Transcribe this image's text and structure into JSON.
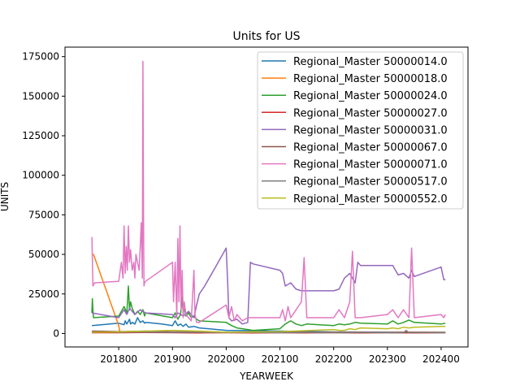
{
  "chart_data": {
    "type": "line",
    "title": "Units for US",
    "xlabel": "YEARWEEK",
    "ylabel": "UNITS",
    "xlim": [
      201700,
      202450
    ],
    "ylim": [
      -8500,
      181000
    ],
    "xticks": [
      201800,
      201900,
      202000,
      202100,
      202200,
      202300,
      202400
    ],
    "yticks": [
      0,
      25000,
      50000,
      75000,
      100000,
      125000,
      150000,
      175000
    ],
    "legend_position": "top-right",
    "series": [
      {
        "name": "Regional_Master 50000014.0",
        "color": "#1f77b4",
        "x": [
          201750,
          201800,
          201810,
          201812,
          201815,
          201820,
          201822,
          201825,
          201830,
          201835,
          201840,
          201845,
          201848,
          201850,
          201880,
          201900,
          201905,
          201910,
          201915,
          201920,
          201925,
          201930,
          201940,
          201950,
          202000,
          202100,
          202200,
          202300,
          202408
        ],
        "y": [
          5000,
          6500,
          5500,
          8000,
          6000,
          9000,
          6000,
          7000,
          6000,
          10000,
          7000,
          8000,
          6500,
          7000,
          6000,
          5000,
          8000,
          5000,
          6000,
          4500,
          6000,
          4000,
          4500,
          3500,
          2000,
          1500,
          1000,
          800,
          700
        ]
      },
      {
        "name": "Regional_Master 50000018.0",
        "color": "#ff7f0e",
        "x": [
          201750,
          201753,
          201800,
          201802,
          201805,
          201850,
          201900,
          201950,
          202000,
          202050,
          202100,
          202150,
          202200,
          202250,
          202300,
          202350,
          202408
        ],
        "y": [
          50000,
          50000,
          5000,
          1200,
          800,
          1000,
          800,
          900,
          700,
          800,
          600,
          700,
          800,
          600,
          700,
          800,
          700
        ]
      },
      {
        "name": "Regional_Master 50000024.0",
        "color": "#2ca02c",
        "x": [
          201750,
          201751,
          201752,
          201753,
          201800,
          201810,
          201815,
          201818,
          201820,
          201822,
          201825,
          201830,
          201835,
          201840,
          201845,
          201848,
          201850,
          201900,
          201905,
          201910,
          201915,
          201918,
          201920,
          201922,
          201925,
          201930,
          201935,
          201940,
          201945,
          201950,
          202000,
          202010,
          202020,
          202030,
          202040,
          202050,
          202100,
          202110,
          202120,
          202130,
          202140,
          202150,
          202200,
          202210,
          202220,
          202230,
          202240,
          202250,
          202300,
          202310,
          202320,
          202330,
          202340,
          202350,
          202400,
          202408
        ],
        "y": [
          13000,
          22000,
          14000,
          10000,
          11000,
          17000,
          13000,
          30000,
          15000,
          20000,
          16000,
          12000,
          14000,
          12000,
          15000,
          11000,
          13000,
          10000,
          13000,
          9000,
          12000,
          23000,
          12000,
          17000,
          11000,
          13000,
          10000,
          11000,
          9000,
          8000,
          7000,
          5000,
          3500,
          3000,
          2500,
          2000,
          3000,
          6000,
          8000,
          6000,
          5000,
          6000,
          5000,
          6000,
          5500,
          6000,
          7000,
          6500,
          6000,
          8000,
          6000,
          7000,
          8500,
          7000,
          6000,
          6500
        ]
      },
      {
        "name": "Regional_Master 50000027.0",
        "color": "#d62728",
        "x": [
          201750,
          201800,
          201850,
          201900,
          201950,
          202000,
          202050,
          202100,
          202150,
          202200,
          202250,
          202300,
          202350,
          202408
        ],
        "y": [
          500,
          500,
          600,
          500,
          400,
          500,
          400,
          500,
          400,
          500,
          400,
          500,
          400,
          500
        ]
      },
      {
        "name": "Regional_Master 50000031.0",
        "color": "#9467bd",
        "x": [
          201750,
          201800,
          201810,
          201815,
          201820,
          201825,
          201830,
          201840,
          201850,
          201900,
          201905,
          201910,
          201920,
          201930,
          201940,
          201945,
          201950,
          201960,
          201980,
          202000,
          202003,
          202005,
          202010,
          202020,
          202025,
          202030,
          202040,
          202045,
          202050,
          202100,
          202105,
          202110,
          202120,
          202130,
          202140,
          202150,
          202200,
          202210,
          202220,
          202230,
          202240,
          202245,
          202250,
          202300,
          202310,
          202320,
          202330,
          202340,
          202345,
          202350,
          202400,
          202405,
          202408
        ],
        "y": [
          13000,
          10000,
          15000,
          12000,
          16000,
          14000,
          12000,
          15000,
          13000,
          12000,
          10000,
          13000,
          11000,
          14000,
          10000,
          18000,
          25000,
          30000,
          42000,
          54000,
          30000,
          10000,
          8000,
          9000,
          7500,
          6000,
          7000,
          45000,
          44000,
          40000,
          38000,
          30000,
          32000,
          28000,
          27000,
          27000,
          27000,
          28000,
          35000,
          38000,
          32000,
          45000,
          43000,
          43000,
          43000,
          37000,
          38000,
          35000,
          40000,
          36000,
          42000,
          34000,
          34000
        ]
      },
      {
        "name": "Regional_Master 50000067.0",
        "color": "#8c564b",
        "x": [
          201750,
          201800,
          201850,
          201900,
          201950,
          202000,
          202050,
          202100,
          202150,
          202200,
          202250,
          202300,
          202350,
          202408
        ],
        "y": [
          1500,
          1200,
          1500,
          1000,
          1200,
          800,
          1000,
          800,
          900,
          700,
          900,
          700,
          800,
          700
        ]
      },
      {
        "name": "Regional_Master 50000071.0",
        "color": "#e377c2",
        "x": [
          201750,
          201752,
          201755,
          201800,
          201805,
          201808,
          201810,
          201812,
          201814,
          201816,
          201818,
          201820,
          201822,
          201825,
          201828,
          201830,
          201832,
          201835,
          201838,
          201840,
          201842,
          201844,
          201845,
          201846,
          201847,
          201848,
          201850,
          201900,
          201902,
          201905,
          201908,
          201910,
          201912,
          201914,
          201916,
          201918,
          201920,
          201922,
          201925,
          201930,
          201935,
          201940,
          201942,
          201945,
          201950,
          202000,
          202005,
          202010,
          202015,
          202020,
          202030,
          202040,
          202045,
          202050,
          202100,
          202105,
          202110,
          202115,
          202120,
          202130,
          202140,
          202145,
          202150,
          202200,
          202210,
          202220,
          202230,
          202235,
          202240,
          202250,
          202300,
          202310,
          202320,
          202330,
          202340,
          202345,
          202350,
          202400,
          202405,
          202408
        ],
        "y": [
          61000,
          30000,
          32000,
          33000,
          45000,
          35000,
          68000,
          38000,
          55000,
          40000,
          68000,
          45000,
          53000,
          40000,
          45000,
          35000,
          50000,
          45000,
          40000,
          55000,
          70000,
          35000,
          172000,
          80000,
          30000,
          32000,
          33000,
          45000,
          20000,
          45000,
          10000,
          60000,
          20000,
          68000,
          15000,
          40000,
          10000,
          20000,
          12000,
          10000,
          8000,
          40000,
          12000,
          7000,
          7000,
          18000,
          10000,
          17000,
          8000,
          12000,
          8000,
          10000,
          10000,
          10000,
          10000,
          15000,
          8000,
          17000,
          10000,
          15000,
          20000,
          48000,
          10000,
          10000,
          15000,
          10000,
          20000,
          52000,
          10000,
          10000,
          12000,
          15000,
          10000,
          15000,
          10000,
          54000,
          10000,
          12000,
          10000,
          12000
        ]
      },
      {
        "name": "Regional_Master 50000517.0",
        "color": "#7f7f7f",
        "x": [
          201750,
          201800,
          201850,
          201900,
          201950,
          202000,
          202050,
          202100,
          202150,
          202200,
          202250,
          202300,
          202330,
          202335,
          202340,
          202350,
          202408
        ],
        "y": [
          1000,
          800,
          900,
          700,
          800,
          600,
          700,
          500,
          600,
          500,
          600,
          500,
          500,
          2000,
          500,
          600,
          500
        ]
      },
      {
        "name": "Regional_Master 50000552.0",
        "color": "#bcbd22",
        "x": [
          201750,
          201800,
          201850,
          201900,
          201950,
          202000,
          202050,
          202100,
          202150,
          202200,
          202210,
          202220,
          202230,
          202240,
          202250,
          202300,
          202310,
          202320,
          202330,
          202340,
          202350,
          202400,
          202408
        ],
        "y": [
          800,
          1000,
          1500,
          2000,
          1500,
          800,
          1000,
          1200,
          1800,
          2500,
          2000,
          2000,
          3000,
          2500,
          3500,
          3000,
          3500,
          3000,
          4000,
          3500,
          4000,
          4500,
          4500
        ]
      }
    ]
  }
}
